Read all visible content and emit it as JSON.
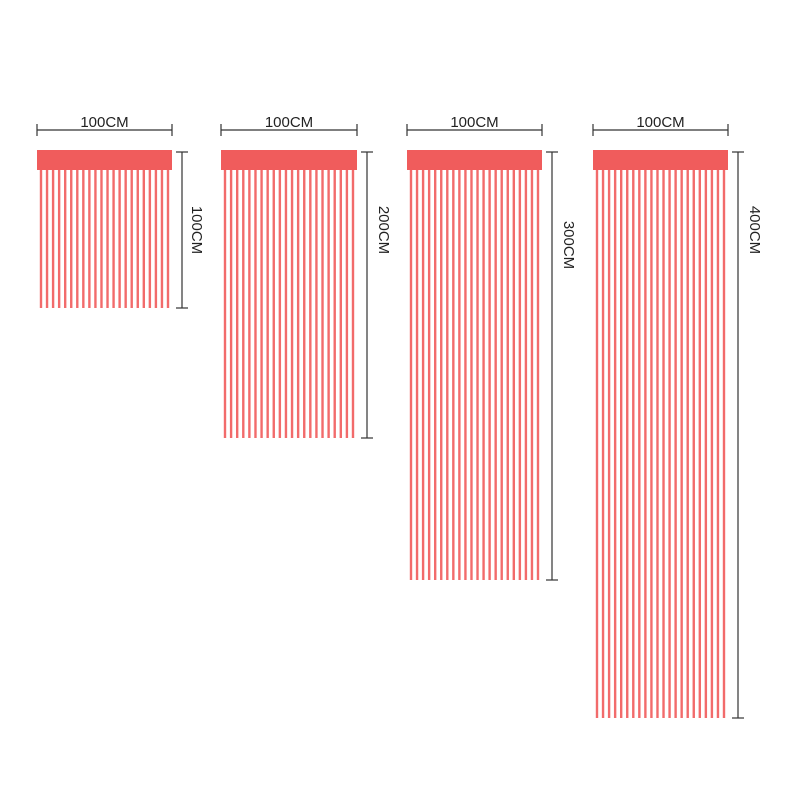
{
  "curtains": [
    {
      "width_label": "100CM",
      "height_label": "100CM"
    },
    {
      "width_label": "100CM",
      "height_label": "200CM"
    },
    {
      "width_label": "100CM",
      "height_label": "300CM"
    },
    {
      "width_label": "100CM",
      "height_label": "400CM"
    }
  ]
}
